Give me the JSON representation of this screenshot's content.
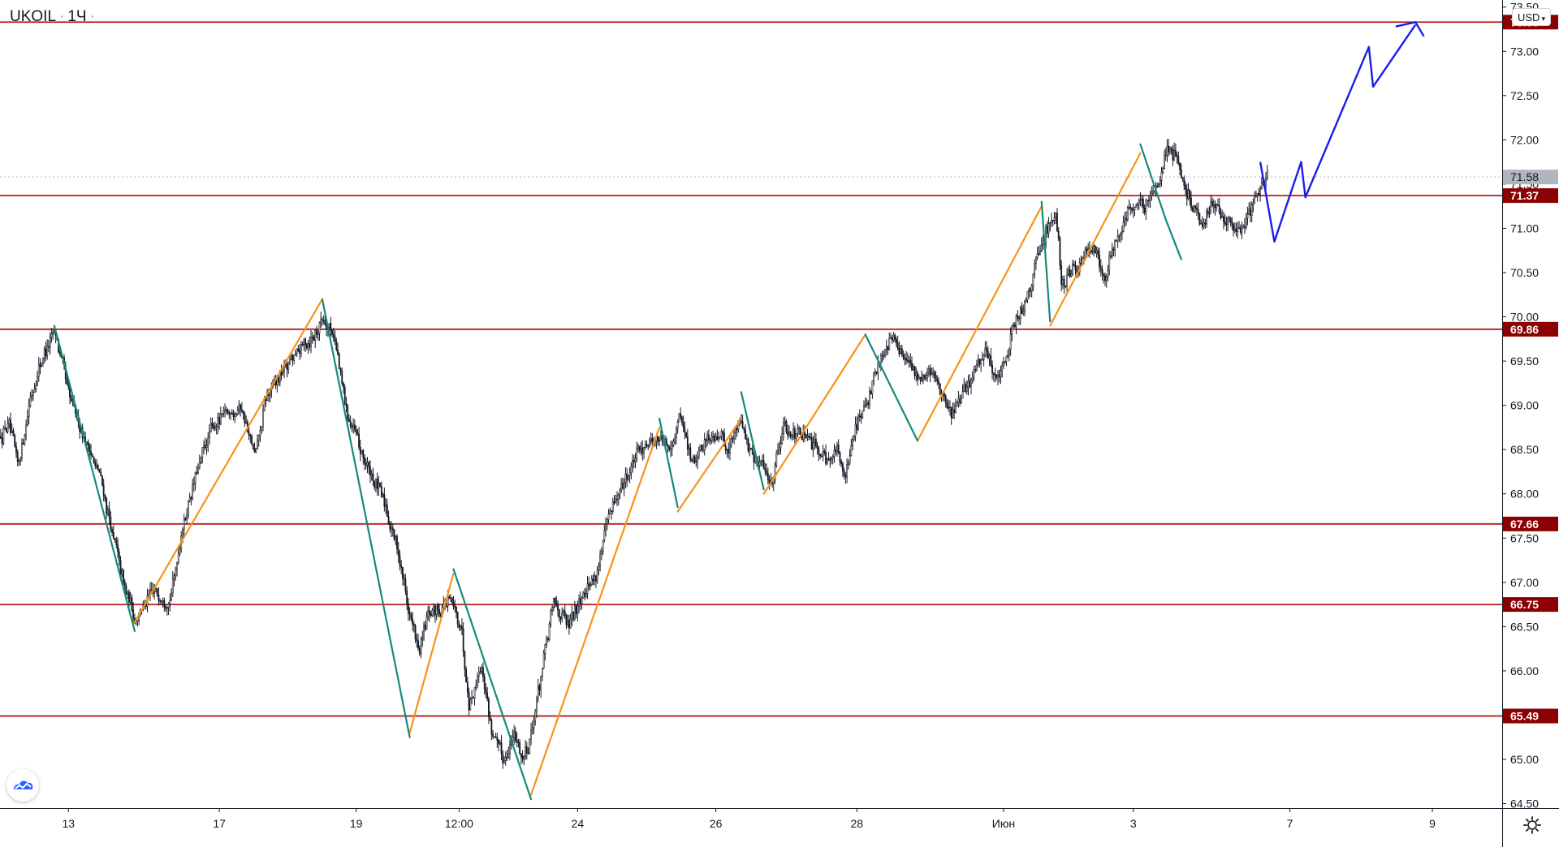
{
  "header": {
    "symbol": "UKOIL",
    "interval": "1Ч",
    "dot": "·"
  },
  "currency_button": {
    "label": "USD"
  },
  "colors": {
    "level_line": "#b71c1c",
    "level_label_bg": "#8b0000",
    "up_wave": "#f7931a",
    "down_wave": "#148a7a",
    "forecast": "#1a1ee8",
    "candle": "#131722",
    "current_price_bg": "#b2b5be"
  },
  "icons": {
    "logo": "tradingview-cloud-icon",
    "settings": "gear-icon"
  },
  "chart_data": {
    "type": "candlestick",
    "title": "UKOIL · 1Ч",
    "y_axis": {
      "range": [
        64.45,
        73.58
      ],
      "ticks": [
        "64.50",
        "65.00",
        "65.50",
        "66.00",
        "66.50",
        "67.00",
        "67.50",
        "68.00",
        "68.50",
        "69.00",
        "69.50",
        "70.00",
        "70.50",
        "71.00",
        "71.50",
        "72.00",
        "72.50",
        "73.00",
        "73.50"
      ]
    },
    "x_axis": {
      "tick_labels": [
        {
          "label": "13",
          "bar": 48
        },
        {
          "label": "17",
          "bar": 155
        },
        {
          "label": "19",
          "bar": 252
        },
        {
          "label": "12:00",
          "bar": 325
        },
        {
          "label": "24",
          "bar": 409
        },
        {
          "label": "26",
          "bar": 507
        },
        {
          "label": "28",
          "bar": 607
        },
        {
          "label": "Июн",
          "bar": 711
        },
        {
          "label": "3",
          "bar": 803
        },
        {
          "label": "7",
          "bar": 914
        },
        {
          "label": "9",
          "bar": 1015
        }
      ],
      "bar_count": 1065
    },
    "levels": [
      {
        "value": 73.33,
        "label": "73.33"
      },
      {
        "value": 71.37,
        "label": "71.37"
      },
      {
        "value": 69.86,
        "label": "69.86"
      },
      {
        "value": 67.66,
        "label": "67.66"
      },
      {
        "value": 66.75,
        "label": "66.75"
      },
      {
        "value": 65.49,
        "label": "65.49"
      }
    ],
    "current_price": {
      "value": 71.58,
      "label": "71.58"
    },
    "candle_anchors": [
      [
        0,
        68.65
      ],
      [
        5,
        68.8
      ],
      [
        12,
        68.3
      ],
      [
        20,
        69.05
      ],
      [
        28,
        69.5
      ],
      [
        38,
        69.85
      ],
      [
        48,
        69.1
      ],
      [
        60,
        68.6
      ],
      [
        70,
        68.2
      ],
      [
        78,
        67.6
      ],
      [
        88,
        66.9
      ],
      [
        95,
        66.6
      ],
      [
        108,
        66.9
      ],
      [
        120,
        66.8
      ],
      [
        128,
        67.6
      ],
      [
        138,
        68.2
      ],
      [
        148,
        68.7
      ],
      [
        158,
        68.9
      ],
      [
        170,
        69.0
      ],
      [
        180,
        68.4
      ],
      [
        188,
        69.1
      ],
      [
        200,
        69.4
      ],
      [
        212,
        69.65
      ],
      [
        222,
        69.8
      ],
      [
        228,
        70.0
      ],
      [
        236,
        69.8
      ],
      [
        244,
        69.0
      ],
      [
        252,
        68.6
      ],
      [
        262,
        68.2
      ],
      [
        272,
        67.9
      ],
      [
        282,
        67.3
      ],
      [
        290,
        66.6
      ],
      [
        296,
        66.2
      ],
      [
        302,
        66.6
      ],
      [
        310,
        66.7
      ],
      [
        318,
        66.8
      ],
      [
        326,
        66.5
      ],
      [
        332,
        65.6
      ],
      [
        340,
        66.1
      ],
      [
        348,
        65.3
      ],
      [
        356,
        65.0
      ],
      [
        364,
        65.3
      ],
      [
        370,
        65.0
      ],
      [
        376,
        65.3
      ],
      [
        382,
        65.9
      ],
      [
        392,
        66.8
      ],
      [
        402,
        66.5
      ],
      [
        412,
        66.9
      ],
      [
        422,
        67.1
      ],
      [
        430,
        67.7
      ],
      [
        440,
        68.1
      ],
      [
        450,
        68.4
      ],
      [
        458,
        68.6
      ],
      [
        466,
        68.65
      ],
      [
        474,
        68.5
      ],
      [
        482,
        68.9
      ],
      [
        490,
        68.3
      ],
      [
        498,
        68.6
      ],
      [
        508,
        68.7
      ],
      [
        516,
        68.5
      ],
      [
        524,
        68.9
      ],
      [
        532,
        68.4
      ],
      [
        540,
        68.3
      ],
      [
        546,
        68.1
      ],
      [
        554,
        68.8
      ],
      [
        562,
        68.7
      ],
      [
        572,
        68.6
      ],
      [
        580,
        68.5
      ],
      [
        586,
        68.4
      ],
      [
        592,
        68.5
      ],
      [
        598,
        68.2
      ],
      [
        606,
        68.8
      ],
      [
        614,
        69.0
      ],
      [
        622,
        69.5
      ],
      [
        632,
        69.8
      ],
      [
        640,
        69.5
      ],
      [
        650,
        69.3
      ],
      [
        660,
        69.4
      ],
      [
        668,
        69.1
      ],
      [
        674,
        68.9
      ],
      [
        682,
        69.1
      ],
      [
        690,
        69.4
      ],
      [
        698,
        69.6
      ],
      [
        706,
        69.3
      ],
      [
        712,
        69.4
      ],
      [
        718,
        70.0
      ],
      [
        724,
        70.1
      ],
      [
        730,
        70.4
      ],
      [
        736,
        70.8
      ],
      [
        742,
        71.0
      ],
      [
        748,
        71.2
      ],
      [
        752,
        70.3
      ],
      [
        758,
        70.5
      ],
      [
        766,
        70.6
      ],
      [
        774,
        70.8
      ],
      [
        782,
        70.4
      ],
      [
        790,
        70.9
      ],
      [
        798,
        71.2
      ],
      [
        806,
        71.3
      ],
      [
        814,
        71.25
      ],
      [
        820,
        71.5
      ],
      [
        826,
        71.95
      ],
      [
        832,
        71.8
      ],
      [
        838,
        71.5
      ],
      [
        846,
        71.2
      ],
      [
        852,
        71.0
      ],
      [
        858,
        71.3
      ],
      [
        864,
        71.2
      ],
      [
        870,
        71.1
      ],
      [
        876,
        70.95
      ],
      [
        882,
        71.1
      ],
      [
        888,
        71.3
      ],
      [
        894,
        71.5
      ],
      [
        898,
        71.6
      ]
    ],
    "wave_up": [
      [
        [
          95,
          66.55
        ],
        [
          228,
          70.2
        ]
      ],
      [
        [
          290,
          65.3
        ],
        [
          321,
          67.1
        ]
      ],
      [
        [
          376,
          64.6
        ],
        [
          467,
          68.75
        ]
      ],
      [
        [
          480,
          67.8
        ],
        [
          525,
          68.85
        ]
      ],
      [
        [
          541,
          68.0
        ],
        [
          613,
          69.8
        ]
      ],
      [
        [
          650,
          68.6
        ],
        [
          738,
          71.25
        ]
      ],
      [
        [
          744,
          69.9
        ],
        [
          808,
          71.85
        ]
      ]
    ],
    "wave_down": [
      [
        [
          38,
          69.9
        ],
        [
          95,
          66.45
        ]
      ],
      [
        [
          228,
          70.2
        ],
        [
          290,
          65.25
        ]
      ],
      [
        [
          321,
          67.15
        ],
        [
          376,
          64.55
        ]
      ],
      [
        [
          467,
          68.85
        ],
        [
          480,
          67.85
        ]
      ],
      [
        [
          525,
          69.15
        ],
        [
          541,
          68.05
        ]
      ],
      [
        [
          613,
          69.8
        ],
        [
          650,
          68.6
        ]
      ],
      [
        [
          738,
          71.3
        ],
        [
          744,
          69.95
        ]
      ],
      [
        [
          808,
          71.95
        ],
        [
          826,
          71.1
        ]
      ],
      [
        [
          826,
          71.1
        ],
        [
          837,
          70.65
        ]
      ]
    ],
    "forecast_path": [
      [
        893,
        71.75
      ],
      [
        903,
        70.85
      ],
      [
        922,
        71.75
      ],
      [
        925,
        71.35
      ],
      [
        970,
        73.05
      ],
      [
        973,
        72.6
      ],
      [
        1003,
        73.3
      ]
    ],
    "forecast_arrowhead": [
      [
        989,
        73.28
      ],
      [
        1003,
        73.33
      ],
      [
        1009,
        73.17
      ]
    ]
  }
}
